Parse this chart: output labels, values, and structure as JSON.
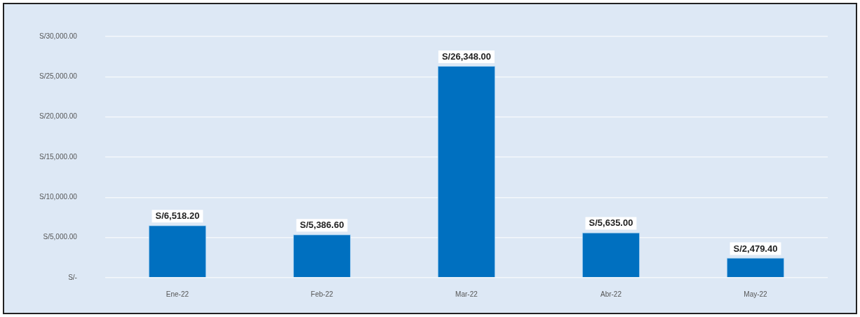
{
  "chart_data": {
    "type": "bar",
    "categories": [
      "Ene-22",
      "Feb-22",
      "Mar-22",
      "Abr-22",
      "May-22"
    ],
    "values": [
      6518.2,
      5386.6,
      26348,
      5635,
      2479.4
    ],
    "value_labels": [
      "S/6,518.20",
      "S/5,386.60",
      "S/26,348.00",
      "S/5,635.00",
      "S/2,479.40"
    ],
    "color": "#0070c0",
    "ylim": [
      0,
      30000
    ],
    "yticks": [
      {
        "value": 0,
        "label": "S/-"
      },
      {
        "value": 5000,
        "label": "S/5,000.00"
      },
      {
        "value": 10000,
        "label": "S/10,000.00"
      },
      {
        "value": 15000,
        "label": "S/15,000.00"
      },
      {
        "value": 20000,
        "label": "S/20,000.00"
      },
      {
        "value": 25000,
        "label": "S/25,000.00"
      },
      {
        "value": 30000,
        "label": "S/30,000.00"
      }
    ],
    "grid": "y",
    "legend": false
  }
}
